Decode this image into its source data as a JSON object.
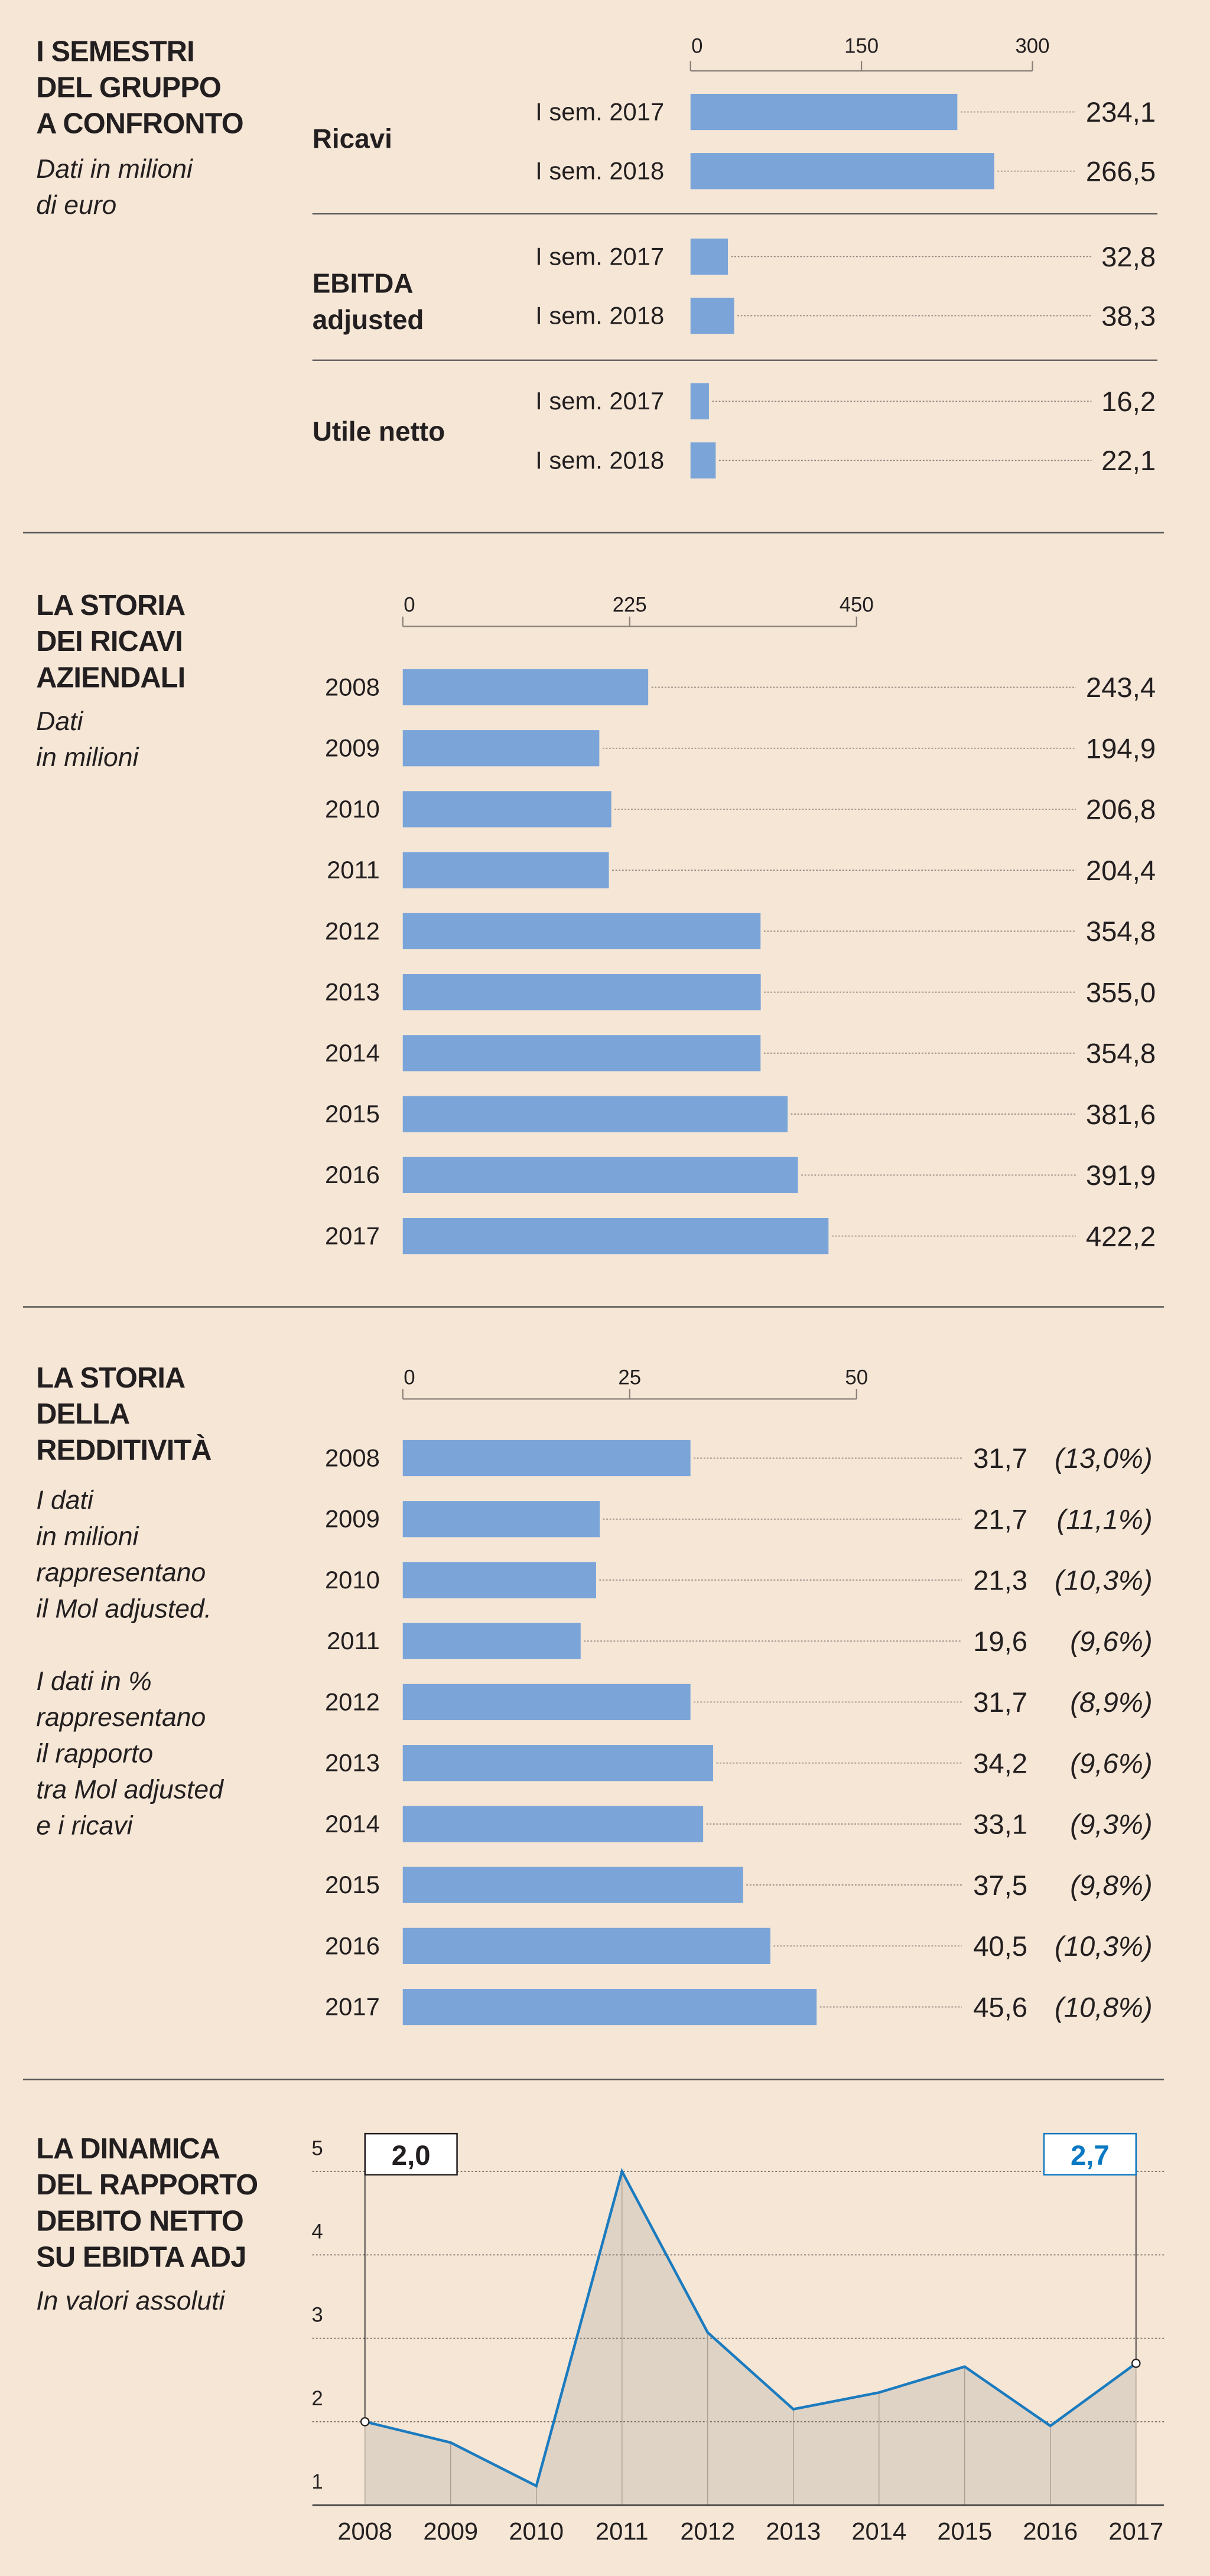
{
  "colors": {
    "background": "#f5e6d6",
    "bar": "#7ba5d8",
    "line": "#1b7bbf",
    "area": "#dfd3c5",
    "highlight": "#0a78c2"
  },
  "chart_data": [
    {
      "type": "bar",
      "title": [
        "I SEMESTRI",
        "DEL GRUPPO",
        "A CONFRONTO"
      ],
      "subtitle": [
        "Dati in milioni",
        "di euro"
      ],
      "xlim": [
        0,
        300
      ],
      "xticks": [
        "0",
        "150",
        "300"
      ],
      "xtick_values": [
        0,
        150,
        300
      ],
      "groups": [
        {
          "label": [
            "Ricavi"
          ],
          "rows": [
            {
              "label": "I sem. 2017",
              "value": 234.1,
              "text": "234,1"
            },
            {
              "label": "I sem. 2018",
              "value": 266.5,
              "text": "266,5"
            }
          ]
        },
        {
          "label": [
            "EBITDA",
            "adjusted"
          ],
          "rows": [
            {
              "label": "I sem. 2017",
              "value": 32.8,
              "text": "32,8"
            },
            {
              "label": "I sem. 2018",
              "value": 38.3,
              "text": "38,3"
            }
          ]
        },
        {
          "label": [
            "Utile netto"
          ],
          "rows": [
            {
              "label": "I sem. 2017",
              "value": 16.2,
              "text": "16,2"
            },
            {
              "label": "I sem. 2018",
              "value": 22.1,
              "text": "22,1"
            }
          ]
        }
      ]
    },
    {
      "type": "bar",
      "title": [
        "LA STORIA",
        "DEI RICAVI",
        "AZIENDALI"
      ],
      "subtitle": [
        "Dati",
        "in milioni"
      ],
      "xlim": [
        0,
        450
      ],
      "xticks": [
        "0",
        "225",
        "450"
      ],
      "xtick_values": [
        0,
        225,
        450
      ],
      "categories": [
        "2008",
        "2009",
        "2010",
        "2011",
        "2012",
        "2013",
        "2014",
        "2015",
        "2016",
        "2017"
      ],
      "values": [
        243.4,
        194.9,
        206.8,
        204.4,
        354.8,
        355.0,
        354.8,
        381.6,
        391.9,
        422.2
      ],
      "value_labels": [
        "243,4",
        "194,9",
        "206,8",
        "204,4",
        "354,8",
        "355,0",
        "354,8",
        "381,6",
        "391,9",
        "422,2"
      ]
    },
    {
      "type": "bar",
      "title": [
        "LA STORIA",
        "DELLA",
        "REDDITIVITÀ"
      ],
      "subtitle": [
        "I dati",
        "in milioni",
        "rappresentano",
        "il Mol adjusted.",
        "",
        "I dati in %",
        "rappresentano",
        "il rapporto",
        "tra Mol adjusted",
        "e i ricavi"
      ],
      "xlim": [
        0,
        50
      ],
      "xticks": [
        "0",
        "25",
        "50"
      ],
      "xtick_values": [
        0,
        25,
        50
      ],
      "categories": [
        "2008",
        "2009",
        "2010",
        "2011",
        "2012",
        "2013",
        "2014",
        "2015",
        "2016",
        "2017"
      ],
      "values": [
        31.7,
        21.7,
        21.3,
        19.6,
        31.7,
        34.2,
        33.1,
        37.5,
        40.5,
        45.6
      ],
      "value_labels": [
        "31,7",
        "21,7",
        "21,3",
        "19,6",
        "31,7",
        "34,2",
        "33,1",
        "37,5",
        "40,5",
        "45,6"
      ],
      "pct_labels": [
        "(13,0%)",
        "(11,1%)",
        "(10,3%)",
        "(9,6%)",
        "(8,9%)",
        "(9,6%)",
        "(9,3%)",
        "(9,8%)",
        "(10,3%)",
        "(10,8%)"
      ]
    },
    {
      "type": "area",
      "title": [
        "LA DINAMICA",
        "DEL RAPPORTO",
        "DEBITO NETTO",
        "SU EBIDTA ADJ"
      ],
      "subtitle": [
        "In valori assoluti"
      ],
      "ylim": [
        1,
        5
      ],
      "yticks": [
        "1",
        "2",
        "3",
        "4",
        "5"
      ],
      "grid": true,
      "x": [
        "2008",
        "2009",
        "2010",
        "2011",
        "2012",
        "2013",
        "2014",
        "2015",
        "2016",
        "2017"
      ],
      "y": [
        2.0,
        1.75,
        1.23,
        5.0,
        3.07,
        2.15,
        2.35,
        2.66,
        1.95,
        2.7
      ],
      "annotations": [
        {
          "x": "2008",
          "text": "2,0"
        },
        {
          "x": "2017",
          "text": "2,7"
        }
      ]
    }
  ]
}
